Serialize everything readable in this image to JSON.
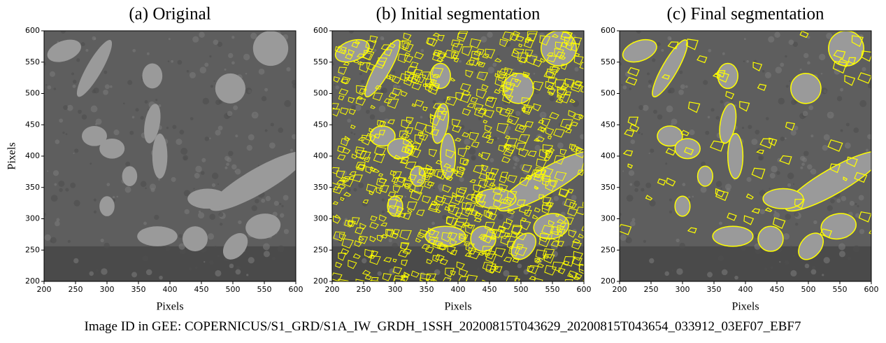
{
  "panels": [
    {
      "title": "(a) Original",
      "style": "original",
      "xlabel": "Pixels",
      "ylabel": "Pixels",
      "xlim": [
        200,
        600
      ],
      "ylim": [
        200,
        600
      ],
      "xticks": [
        200,
        250,
        300,
        350,
        400,
        450,
        500,
        550,
        600
      ],
      "yticks": [
        200,
        250,
        300,
        350,
        400,
        450,
        500,
        550,
        600
      ]
    },
    {
      "title": "(b) Initial segmentation",
      "style": "initial",
      "xlabel": "Pixels",
      "xlim": [
        200,
        600
      ],
      "ylim": [
        200,
        600
      ],
      "xticks": [
        200,
        250,
        300,
        350,
        400,
        450,
        500,
        550,
        600
      ],
      "yticks": [
        200,
        250,
        300,
        350,
        400,
        450,
        500,
        550,
        600
      ]
    },
    {
      "title": "(c) Final segmentation",
      "style": "final",
      "xlabel": "Pixels",
      "xlim": [
        200,
        600
      ],
      "ylim": [
        200,
        600
      ],
      "xticks": [
        200,
        250,
        300,
        350,
        400,
        450,
        500,
        550,
        600
      ],
      "yticks": [
        200,
        250,
        300,
        350,
        400,
        450,
        500,
        550,
        600
      ]
    }
  ],
  "caption": "Image ID in GEE: COPERNICUS/S1_GRD/S1A_IW_GRDH_1SSH_20200815T043629_20200815T043654_033912_03EF07_EBF7"
}
